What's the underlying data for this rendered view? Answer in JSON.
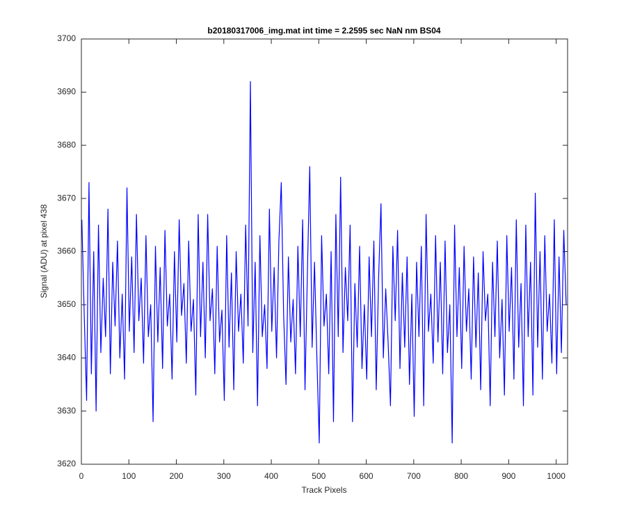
{
  "chart_data": {
    "type": "line",
    "title": "b20180317006_img.mat int time = 2.2595 sec  NaN nm BS04",
    "xlabel": "Track Pixels",
    "ylabel": "Signal (ADU) at pixel 438",
    "color": "#0000ff",
    "xlim": [
      0,
      1024
    ],
    "xticks": [
      0,
      100,
      200,
      300,
      400,
      500,
      600,
      700,
      800,
      900,
      1000
    ],
    "ylim": [
      3620,
      3700
    ],
    "yticks": [
      3620,
      3630,
      3640,
      3650,
      3660,
      3670,
      3680,
      3690,
      3700
    ],
    "grid": false,
    "x": [
      1,
      6,
      11,
      16,
      21,
      26,
      31,
      36,
      41,
      46,
      51,
      56,
      61,
      66,
      71,
      76,
      81,
      86,
      91,
      96,
      101,
      106,
      111,
      116,
      121,
      126,
      131,
      136,
      141,
      146,
      151,
      156,
      161,
      166,
      171,
      176,
      181,
      186,
      191,
      196,
      201,
      206,
      211,
      216,
      221,
      226,
      231,
      236,
      241,
      246,
      251,
      256,
      261,
      266,
      271,
      276,
      281,
      286,
      291,
      296,
      301,
      306,
      311,
      316,
      321,
      326,
      331,
      336,
      341,
      346,
      351,
      356,
      361,
      366,
      371,
      376,
      381,
      386,
      391,
      396,
      401,
      406,
      411,
      416,
      421,
      426,
      431,
      436,
      441,
      446,
      451,
      456,
      461,
      466,
      471,
      476,
      481,
      486,
      491,
      496,
      501,
      506,
      511,
      516,
      521,
      526,
      531,
      536,
      541,
      546,
      551,
      556,
      561,
      566,
      571,
      576,
      581,
      586,
      591,
      596,
      601,
      606,
      611,
      616,
      621,
      626,
      631,
      636,
      641,
      646,
      651,
      656,
      661,
      666,
      671,
      676,
      681,
      686,
      691,
      696,
      701,
      706,
      711,
      716,
      721,
      726,
      731,
      736,
      741,
      746,
      751,
      756,
      761,
      766,
      771,
      776,
      781,
      786,
      791,
      796,
      801,
      806,
      811,
      816,
      821,
      826,
      831,
      836,
      841,
      846,
      851,
      856,
      861,
      866,
      871,
      876,
      881,
      886,
      891,
      896,
      901,
      906,
      911,
      916,
      921,
      926,
      931,
      936,
      941,
      946,
      951,
      956,
      961,
      966,
      971,
      976,
      981,
      986,
      991,
      996,
      1001,
      1006,
      1011,
      1016,
      1021
    ],
    "values": [
      3666,
      3648,
      3632,
      3673,
      3637,
      3660,
      3630,
      3665,
      3641,
      3655,
      3644,
      3668,
      3637,
      3658,
      3646,
      3662,
      3640,
      3652,
      3636,
      3672,
      3645,
      3659,
      3641,
      3667,
      3647,
      3655,
      3639,
      3663,
      3644,
      3650,
      3628,
      3661,
      3643,
      3657,
      3638,
      3664,
      3646,
      3652,
      3636,
      3660,
      3643,
      3666,
      3648,
      3654,
      3639,
      3662,
      3645,
      3651,
      3633,
      3667,
      3644,
      3658,
      3640,
      3667,
      3647,
      3653,
      3637,
      3661,
      3643,
      3649,
      3632,
      3663,
      3642,
      3656,
      3634,
      3660,
      3645,
      3652,
      3639,
      3665,
      3646,
      3692,
      3641,
      3658,
      3631,
      3663,
      3644,
      3650,
      3638,
      3668,
      3645,
      3657,
      3640,
      3662,
      3673,
      3648,
      3635,
      3659,
      3643,
      3651,
      3637,
      3661,
      3644,
      3666,
      3634,
      3656,
      3676,
      3642,
      3658,
      3640,
      3624,
      3663,
      3646,
      3652,
      3637,
      3660,
      3628,
      3667,
      3644,
      3674,
      3641,
      3657,
      3647,
      3665,
      3628,
      3654,
      3642,
      3661,
      3638,
      3650,
      3636,
      3659,
      3644,
      3662,
      3634,
      3655,
      3669,
      3640,
      3653,
      3643,
      3631,
      3661,
      3647,
      3664,
      3638,
      3656,
      3642,
      3659,
      3635,
      3652,
      3629,
      3658,
      3644,
      3661,
      3631,
      3667,
      3645,
      3652,
      3639,
      3663,
      3643,
      3658,
      3637,
      3662,
      3641,
      3650,
      3624,
      3665,
      3644,
      3657,
      3638,
      3661,
      3645,
      3653,
      3636,
      3659,
      3642,
      3656,
      3634,
      3660,
      3647,
      3652,
      3631,
      3658,
      3644,
      3662,
      3640,
      3651,
      3633,
      3663,
      3645,
      3657,
      3636,
      3666,
      3642,
      3654,
      3631,
      3665,
      3644,
      3658,
      3633,
      3671,
      3642,
      3660,
      3636,
      3663,
      3645,
      3652,
      3639,
      3666,
      3637,
      3659,
      3641,
      3664,
      3650
    ]
  }
}
